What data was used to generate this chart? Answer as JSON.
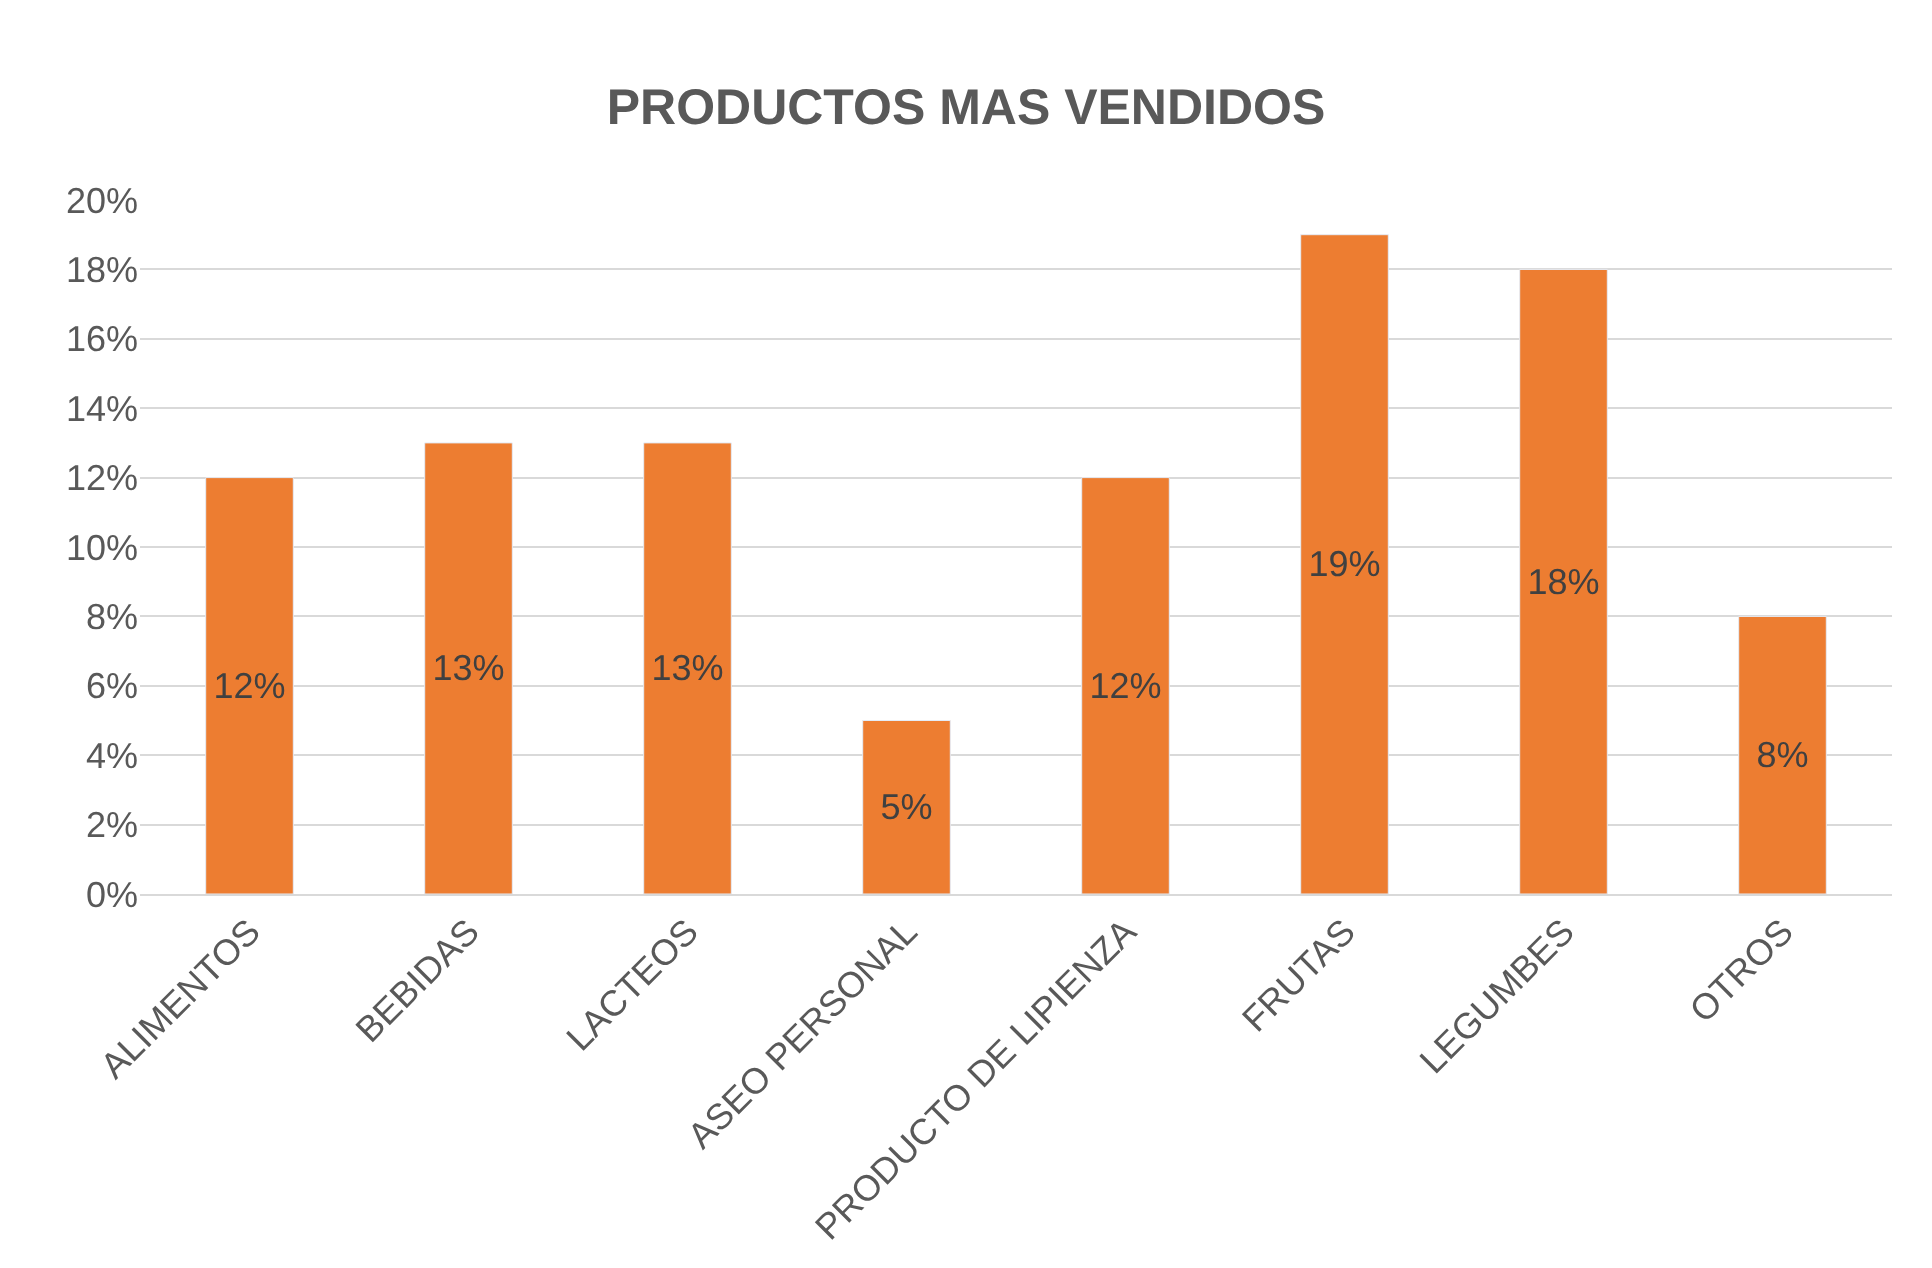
{
  "chart_data": {
    "type": "bar",
    "title": "PRODUCTOS MAS VENDIDOS",
    "categories": [
      "ALIMENTOS",
      "BEBIDAS",
      "LACTEOS",
      "ASEO PERSONAL",
      "PRODUCTO DE LIPIENZA",
      "FRUTAS",
      "LEGUMBES",
      "OTROS"
    ],
    "values": [
      12,
      13,
      13,
      5,
      12,
      19,
      18,
      8
    ],
    "value_labels": [
      "12%",
      "13%",
      "13%",
      "5%",
      "12%",
      "19%",
      "18%",
      "8%"
    ],
    "color": "#ed7d31",
    "ylim": [
      0,
      20
    ],
    "yticks": [
      {
        "value": 0,
        "label": "0%"
      },
      {
        "value": 2,
        "label": "2%"
      },
      {
        "value": 4,
        "label": "4%"
      },
      {
        "value": 6,
        "label": "6%"
      },
      {
        "value": 8,
        "label": "8%"
      },
      {
        "value": 10,
        "label": "10%"
      },
      {
        "value": 12,
        "label": "12%"
      },
      {
        "value": 14,
        "label": "14%"
      },
      {
        "value": 16,
        "label": "16%"
      },
      {
        "value": 18,
        "label": "18%"
      },
      {
        "value": 20,
        "label": "20%"
      }
    ],
    "grid": "y",
    "legend": false
  }
}
